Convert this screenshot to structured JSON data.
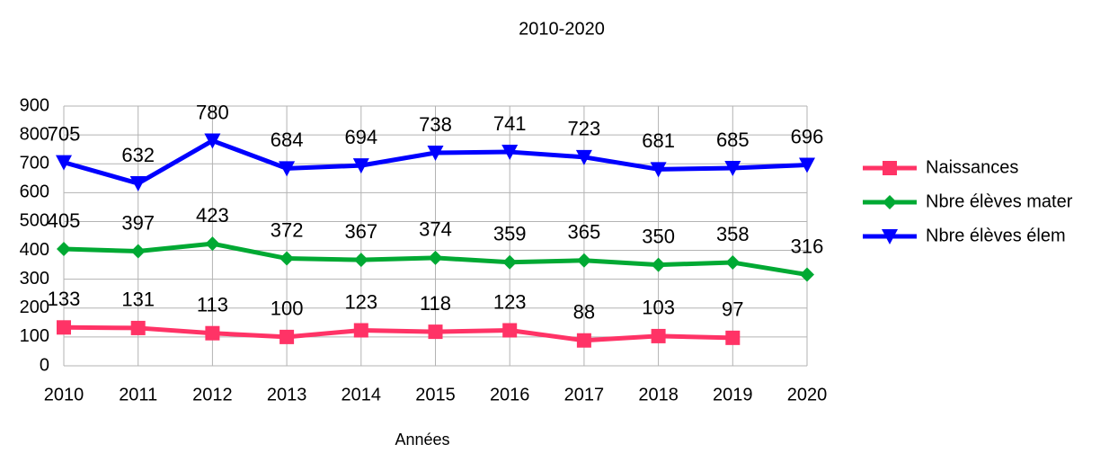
{
  "chart_data": {
    "type": "line",
    "title": "2010-2020",
    "x_label": "Années",
    "categories": [
      "2010",
      "2011",
      "2012",
      "2013",
      "2014",
      "2015",
      "2016",
      "2017",
      "2018",
      "2019",
      "2020"
    ],
    "series": [
      {
        "name": "Naissances",
        "color": "#ff3366",
        "marker": "square",
        "values": [
          133,
          131,
          113,
          100,
          123,
          118,
          123,
          88,
          103,
          97,
          null
        ]
      },
      {
        "name": "Nbre élèves mater",
        "color": "#00a933",
        "marker": "diamond",
        "values": [
          405,
          397,
          423,
          372,
          367,
          374,
          359,
          365,
          350,
          358,
          316
        ]
      },
      {
        "name": "Nbre élèves élem",
        "color": "#0000ff",
        "marker": "triangle-down",
        "values": [
          705,
          632,
          780,
          684,
          694,
          738,
          741,
          723,
          681,
          685,
          696
        ]
      }
    ],
    "ylim": [
      0,
      900
    ],
    "yticks": [
      0,
      100,
      200,
      300,
      400,
      500,
      600,
      700,
      800,
      900
    ],
    "grid": true,
    "legend": "right"
  }
}
